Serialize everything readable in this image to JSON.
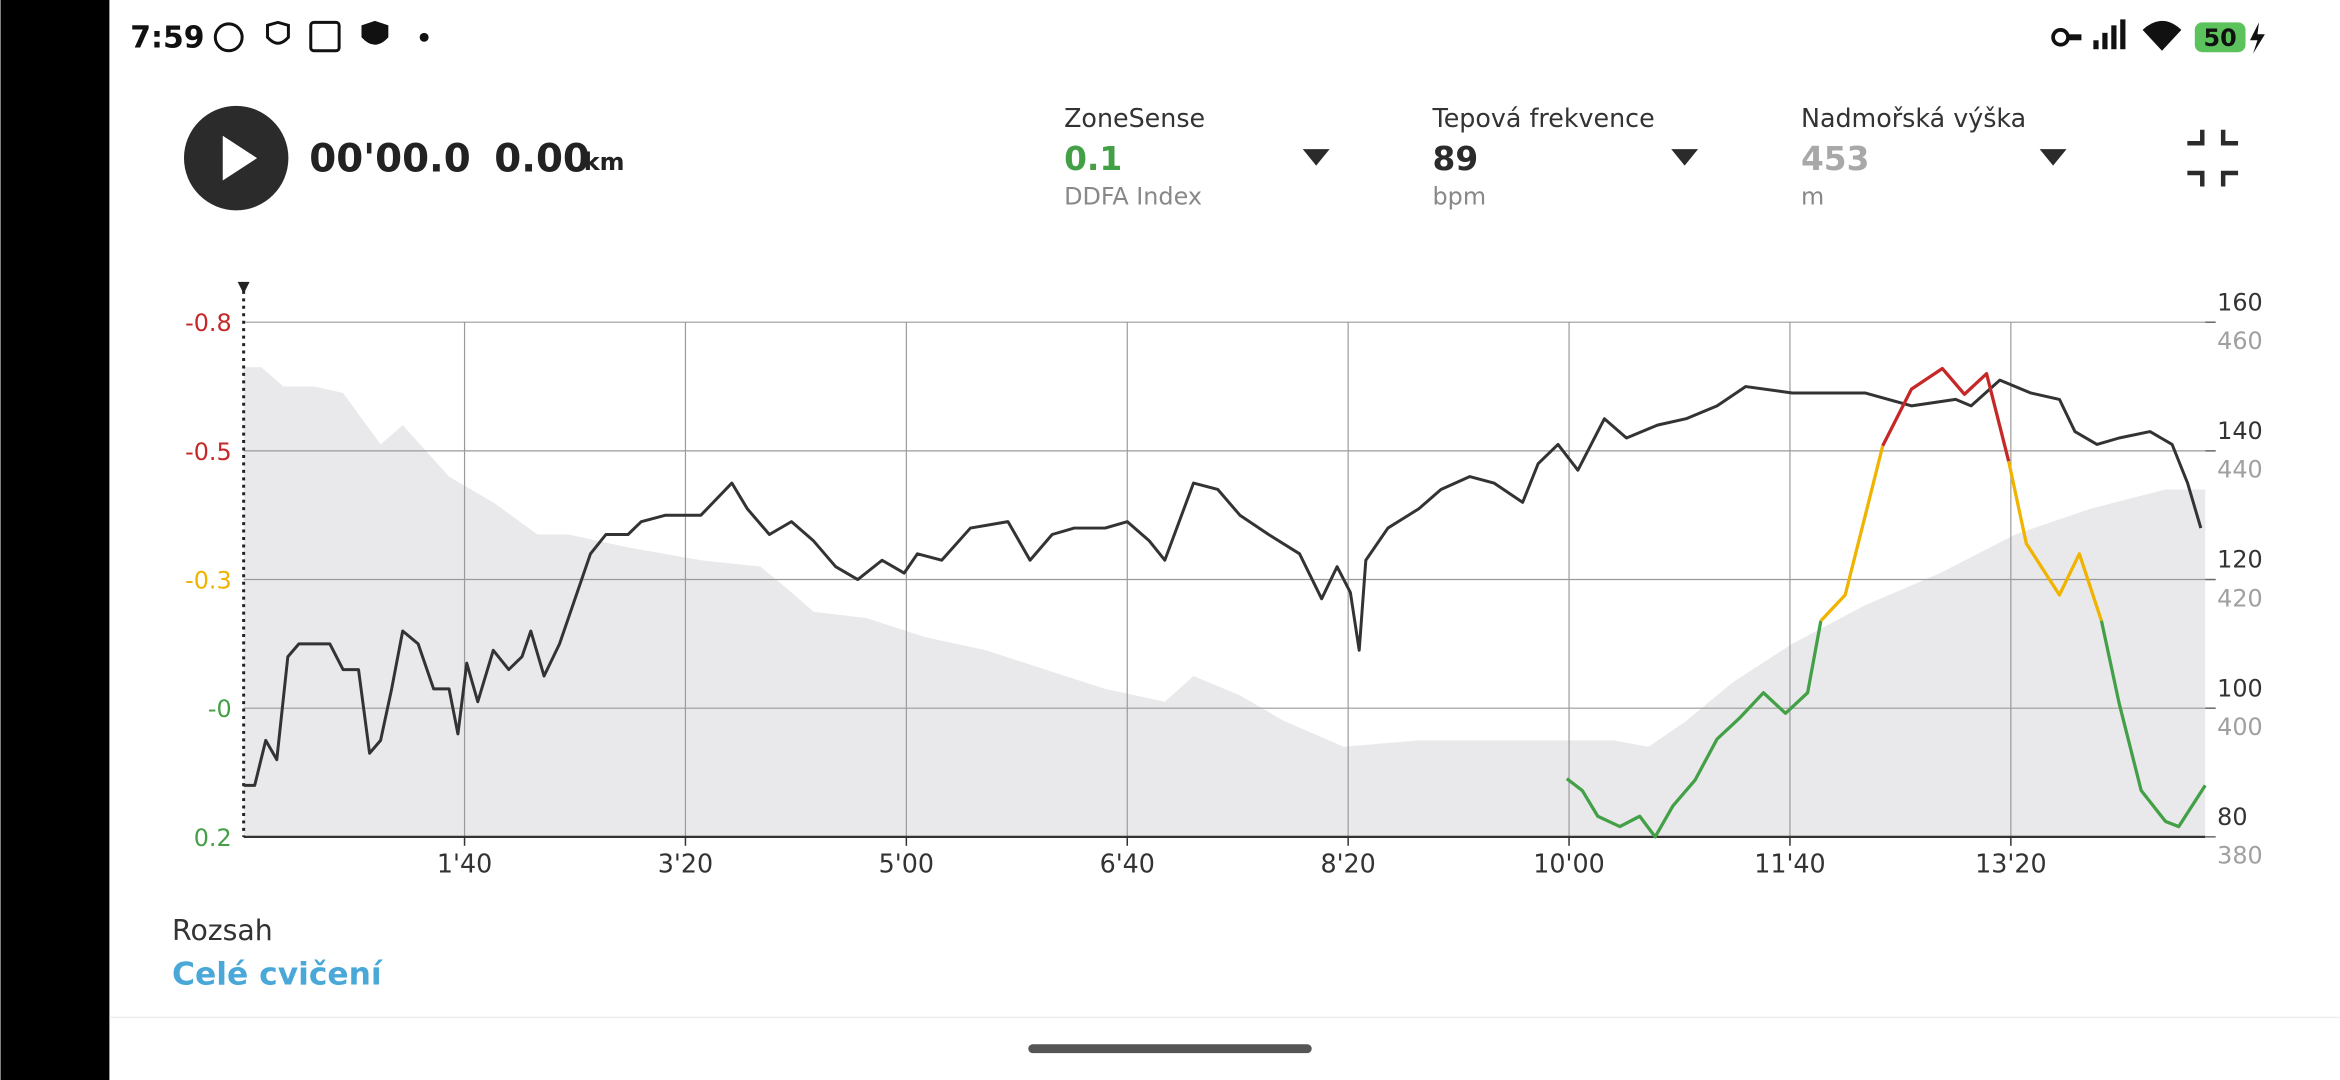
{
  "status_bar": {
    "time": "7:59",
    "battery": "50"
  },
  "player": {
    "elapsed": "00'00.0",
    "distance": "0.00",
    "distance_unit": "km"
  },
  "metrics": [
    {
      "label": "ZoneSense",
      "value": 0.1,
      "unit": "DDFA Index",
      "color": "#43a047"
    },
    {
      "label": "Tepová frekvence",
      "value": 89,
      "unit": "bpm",
      "color": "#2b2b2b"
    },
    {
      "label": "Nadmořská výška",
      "value": 453,
      "unit": "m",
      "color": "#a8a8a8"
    }
  ],
  "range": {
    "label": "Rozsah",
    "value": "Celé cvičení"
  },
  "chart_data": {
    "type": "line",
    "grid": true,
    "xlim": [
      0,
      888
    ],
    "xticks": [
      {
        "value": 100,
        "label": "1'40"
      },
      {
        "value": 200,
        "label": "3'20"
      },
      {
        "value": 300,
        "label": "5'00"
      },
      {
        "value": 400,
        "label": "6'40"
      },
      {
        "value": 500,
        "label": "8'20"
      },
      {
        "value": 600,
        "label": "10'00"
      },
      {
        "value": 700,
        "label": "11'40"
      },
      {
        "value": 800,
        "label": "13'20"
      }
    ],
    "ylim": [
      0.25,
      -0.75
    ],
    "yticks": [
      {
        "value": -0.75,
        "label": "-0.8"
      },
      -0.5,
      {
        "value": -0.25,
        "label": "-0.3"
      },
      {
        "value": 0,
        "label": "-0"
      },
      {
        "value": 0.25,
        "label": "0.2"
      }
    ],
    "ytick_colors": [
      "#c62828",
      "#c62828",
      "#f0b400",
      "#43a047",
      "#43a047"
    ],
    "y2lim": [
      80,
      160
    ],
    "y2ticks": [
      160,
      140,
      120,
      100,
      80
    ],
    "y2tick_color": "#333333",
    "y3lim": [
      380,
      460
    ],
    "y3ticks": [
      460,
      440,
      420,
      400,
      380
    ],
    "y3tick_color": "#a0a0a0",
    "series": [
      {
        "axis": "y3",
        "fill": true,
        "color": "#e9e9eb",
        "x": [
          0,
          8,
          18,
          32,
          45,
          62,
          72,
          93,
          113,
          133,
          147,
          174,
          207,
          234,
          248,
          258,
          282,
          309,
          336,
          363,
          390,
          417,
          430,
          451,
          471,
          498,
          532,
          566,
          599,
          620,
          636,
          653,
          674,
          701,
          734,
          768,
          802,
          836,
          870,
          888
        ],
        "values": [
          453,
          453,
          450,
          450,
          449,
          441,
          444,
          436,
          432,
          427,
          427,
          425,
          423,
          422,
          418,
          415,
          414,
          411,
          409,
          406,
          403,
          401,
          405,
          402,
          398,
          394,
          395,
          395,
          395,
          395,
          394,
          398,
          404,
          410,
          416,
          421,
          427,
          431,
          434,
          434
        ]
      },
      {
        "axis": "y2",
        "color": "#333333",
        "x": [
          0,
          5,
          10,
          15,
          20,
          25,
          32,
          39,
          45,
          52,
          57,
          62,
          67,
          72,
          79,
          86,
          93,
          97,
          101,
          106,
          113,
          120,
          126,
          130,
          136,
          143,
          150,
          157,
          164,
          174,
          180,
          191,
          207,
          221,
          228,
          238,
          248,
          258,
          268,
          278,
          289,
          299,
          305,
          316,
          329,
          346,
          356,
          366,
          376,
          390,
          400,
          410,
          417,
          430,
          441,
          451,
          464,
          478,
          488,
          495,
          501,
          505,
          508,
          518,
          532,
          542,
          555,
          566,
          579,
          586,
          595,
          604,
          616,
          626,
          640,
          653,
          667,
          680,
          701,
          734,
          755,
          775,
          782,
          795,
          809,
          822,
          829,
          839,
          849,
          863,
          873,
          880,
          886
        ],
        "values": [
          88,
          88,
          95,
          92,
          108,
          110,
          110,
          110,
          106,
          106,
          93,
          95,
          103,
          112,
          110,
          103,
          103,
          96,
          107,
          101,
          109,
          106,
          108,
          112,
          105,
          110,
          117,
          124,
          127,
          127,
          129,
          130,
          130,
          135,
          131,
          127,
          129,
          126,
          122,
          120,
          123,
          121,
          124,
          123,
          128,
          129,
          123,
          127,
          128,
          128,
          129,
          126,
          123,
          135,
          134,
          130,
          127,
          124,
          117,
          122,
          118,
          109,
          123,
          128,
          131,
          134,
          136,
          135,
          132,
          138,
          141,
          137,
          145,
          142,
          144,
          145,
          147,
          150,
          149,
          149,
          147,
          148,
          147,
          151,
          149,
          148,
          143,
          141,
          142,
          143,
          141,
          135,
          128
        ]
      },
      {
        "axis": "y",
        "x": [
          599,
          606,
          613,
          623,
          632,
          639,
          647,
          657,
          667,
          677,
          688,
          698,
          708,
          714,
          725,
          735,
          742,
          755,
          769,
          779,
          789,
          799,
          807,
          822,
          831,
          841,
          849,
          859,
          870,
          876,
          888
        ],
        "values": [
          0.137,
          0.16,
          0.21,
          0.23,
          0.21,
          0.25,
          0.19,
          0.14,
          0.06,
          0.02,
          -0.03,
          0.01,
          -0.03,
          -0.17,
          -0.22,
          -0.39,
          -0.51,
          -0.62,
          -0.66,
          -0.61,
          -0.65,
          -0.48,
          -0.32,
          -0.22,
          -0.3,
          -0.17,
          -0.01,
          0.16,
          0.22,
          0.23,
          0.15
        ],
        "point_colors": [
          "#43a047",
          "#43a047",
          "#43a047",
          "#43a047",
          "#43a047",
          "#43a047",
          "#43a047",
          "#43a047",
          "#43a047",
          "#43a047",
          "#43a047",
          "#43a047",
          "#43a047",
          "#43a047",
          "#f0b400",
          "#f0b400",
          "#f0b400",
          "#c62828",
          "#c62828",
          "#c62828",
          "#c62828",
          "#c62828",
          "#f0b400",
          "#f0b400",
          "#f0b400",
          "#f0b400",
          "#43a047",
          "#43a047",
          "#43a047",
          "#43a047",
          "#43a047"
        ]
      }
    ]
  }
}
